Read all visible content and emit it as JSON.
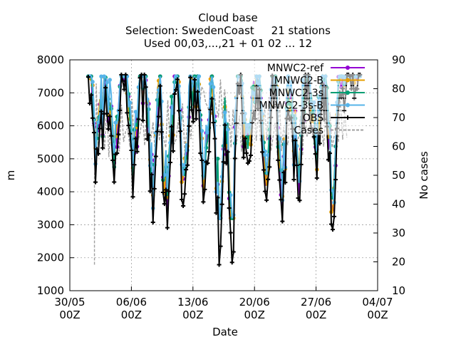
{
  "chart_data": {
    "type": "line",
    "title_lines": [
      "Cloud base",
      "Selection: SwedenCoast     21 stations",
      "Used 00,03,...,21 + 01 02 ... 12"
    ],
    "xlabel": "Date",
    "ylabel": "m",
    "y2label": "No cases",
    "ylim": [
      1000,
      8000
    ],
    "y2lim": [
      10,
      90
    ],
    "yticks": [
      "1000",
      "2000",
      "3000",
      "4000",
      "5000",
      "6000",
      "7000",
      "8000"
    ],
    "y2ticks": [
      "10",
      "20",
      "30",
      "40",
      "50",
      "60",
      "70",
      "80",
      "90"
    ],
    "xlim_days": [
      0,
      35
    ],
    "xticks": [
      {
        "day": 0,
        "label1": "30/05",
        "label2": "00Z"
      },
      {
        "day": 7,
        "label1": "06/06",
        "label2": "00Z"
      },
      {
        "day": 14,
        "label1": "13/06",
        "label2": "00Z"
      },
      {
        "day": 21,
        "label1": "20/06",
        "label2": "00Z"
      },
      {
        "day": 28,
        "label1": "27/06",
        "label2": "00Z"
      },
      {
        "day": 35,
        "label1": "04/07",
        "label2": "00Z"
      }
    ],
    "grid": true,
    "legend_position": "top-right",
    "series": [
      {
        "name": "MNWC2-ref",
        "color": "#9400d3",
        "marker": "circle"
      },
      {
        "name": "MNWC2-B",
        "color": "#e69f00",
        "marker": "circle"
      },
      {
        "name": "MNWC2-3s",
        "color": "#009e73",
        "marker": "circle"
      },
      {
        "name": "MNWC2-3s-B",
        "color": "#56b4e9",
        "marker": "circle"
      },
      {
        "name": "OBS",
        "color": "#000000",
        "marker": "cross"
      },
      {
        "name": "Cases",
        "color": "#a0a0a0",
        "marker": "none"
      }
    ],
    "date_range": {
      "start": "31/05",
      "end": "02/07"
    }
  }
}
